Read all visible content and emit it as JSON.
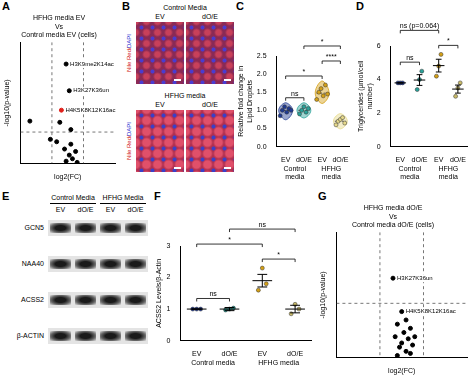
{
  "chart_data": [
    {
      "panel": "A",
      "type": "scatter",
      "title": [
        "HFHG media EV",
        "Vs",
        "Control media EV (cells)"
      ],
      "x_label": "log2(FC)",
      "y_label": "-log10(p-value)",
      "tick_labels": false,
      "grid": false,
      "xlim": [
        -1.5,
        1.5
      ],
      "ylim": [
        0,
        5
      ],
      "thresholds": {
        "x": [
          -0.5,
          0.5
        ],
        "y": 1.3
      },
      "x": [
        -0.05,
        0.05,
        -0.2,
        -1.2,
        -0.25,
        -0.55,
        -0.35,
        0.1,
        -0.1,
        0.25,
        0.05,
        0.15,
        -0.05,
        0.3,
        0.1
      ],
      "values": [
        4.1,
        3.0,
        2.2,
        1.75,
        1.7,
        1.0,
        0.9,
        0.8,
        0.6,
        0.5,
        0.35,
        0.2,
        0.1,
        0.05,
        1.4
      ],
      "colors": [
        "#000000",
        "#000000",
        "#e0201b",
        "#000000",
        "#000000",
        "#000000",
        "#000000",
        "#000000",
        "#000000",
        "#000000",
        "#000000",
        "#000000",
        "#000000",
        "#000000",
        "#000000"
      ],
      "point_labels": [
        "H3K9me2K14ac",
        "H3K27K36un",
        "H4K5K8K12K16ac",
        null,
        null,
        null,
        null,
        null,
        null,
        null,
        null,
        null,
        null,
        null,
        null
      ]
    },
    {
      "panel": "C",
      "type": "violin",
      "y_label": "Relative fold change in Lipid Droplets",
      "grid": false,
      "categories": [
        "EV",
        "dO/E",
        "EV",
        "dO/E"
      ],
      "groups": [
        {
          "label": "Control media",
          "span": 2
        },
        {
          "label": "HFHG media",
          "span": 2
        }
      ],
      "colors": [
        "#1f3a93",
        "#2aa198",
        "#d4a017",
        "#e6d98a"
      ],
      "points": [
        [
          0.85,
          1.0,
          1.1,
          0.95,
          1.05,
          1.0
        ],
        [
          0.9,
          1.0,
          1.1,
          0.95,
          1.05
        ],
        [
          1.3,
          1.5,
          1.6,
          1.4,
          1.7,
          1.45
        ],
        [
          0.6,
          0.7,
          0.75,
          0.8,
          0.65
        ]
      ],
      "ylim": [
        0,
        2.5
      ],
      "yticks": [
        {
          "value": 0,
          "label": "0.0"
        },
        {
          "value": 0.5,
          "label": "0.5"
        },
        {
          "value": 1,
          "label": "1.0"
        },
        {
          "value": 1.5,
          "label": "1.5"
        },
        {
          "value": 2,
          "label": "2.0"
        },
        {
          "value": 2.5,
          "label": "2.5"
        }
      ],
      "significance": [
        {
          "from": 0,
          "to": 1,
          "label": "ns"
        },
        {
          "from": 0,
          "to": 2,
          "label": "*"
        },
        {
          "from": 2,
          "to": 3,
          "label": "****"
        },
        {
          "from": 1,
          "to": 3,
          "label": "*"
        }
      ]
    },
    {
      "panel": "D",
      "type": "dot",
      "y_label": "Triglycerides (µmol/cell number)",
      "grid": false,
      "categories": [
        "EV",
        "dO/E",
        "EV",
        "dO/E"
      ],
      "groups": [
        {
          "label": "Control media",
          "span": 2
        },
        {
          "label": "HFHG media",
          "span": 2
        }
      ],
      "colors": [
        "#1f3a93",
        "#2aa198",
        "#d4a017",
        "#c9bb6a"
      ],
      "values": [
        3.8,
        3.97,
        4.83,
        3.43
      ],
      "errors": [
        0,
        0.32,
        0.38,
        0.24
      ],
      "points": [
        [
          3.8,
          3.8,
          3.8
        ],
        [
          3.4,
          4.0,
          4.5
        ],
        [
          4.2,
          4.8,
          5.5
        ],
        [
          3.0,
          3.5,
          3.8
        ]
      ],
      "ylim": [
        0,
        6
      ],
      "yticks": [
        0,
        2,
        4,
        6
      ],
      "significance": [
        {
          "from": 0,
          "to": 1,
          "label": "ns"
        },
        {
          "from": 2,
          "to": 3,
          "label": "*"
        },
        {
          "from": 0,
          "to": 2,
          "label": "ns (p=0.064)"
        }
      ]
    },
    {
      "panel": "F",
      "type": "dot",
      "y_label": "ACSS2 Levels/β-Actin",
      "grid": false,
      "categories": [
        "EV",
        "dO/E",
        "EV",
        "dO/E"
      ],
      "groups": [
        {
          "label": "Control media",
          "span": 2
        },
        {
          "label": "HFHG media",
          "span": 2
        }
      ],
      "colors": [
        "#1f3a93",
        "#2aa198",
        "#d4a017",
        "#c9bb6a"
      ],
      "values": [
        1.0,
        1.0,
        1.9,
        1.0
      ],
      "errors": [
        0,
        0.05,
        0.2,
        0.12
      ],
      "points": [
        [
          1.0,
          1.0,
          1.0
        ],
        [
          0.97,
          1.0,
          1.03
        ],
        [
          1.6,
          2.3,
          1.8
        ],
        [
          0.85,
          1.15,
          1.0
        ]
      ],
      "ylim": [
        0,
        3
      ],
      "yticks": [
        0,
        1,
        2,
        3
      ],
      "significance": [
        {
          "from": 0,
          "to": 1,
          "label": "ns"
        },
        {
          "from": 2,
          "to": 3,
          "label": "*"
        },
        {
          "from": 0,
          "to": 2,
          "label": "*"
        },
        {
          "from": 1,
          "to": 3,
          "label": "ns"
        }
      ]
    },
    {
      "panel": "G",
      "type": "scatter",
      "title": [
        "HFHG media dO/E",
        "Vs",
        "Control media dO/E (cells)"
      ],
      "x_label": "log2(FC)",
      "y_label": "-log10(p-value)",
      "tick_labels": false,
      "grid": false,
      "xlim": [
        -1.5,
        1.5
      ],
      "ylim": [
        0,
        3
      ],
      "thresholds": {
        "x": [
          -0.5,
          0.5
        ],
        "y": 1.3
      },
      "x": [
        -0.2,
        0.0,
        0.1,
        -0.1,
        0.2,
        0.05,
        -0.15,
        0.15,
        0,
        0.25,
        -0.05,
        0.1,
        0.2,
        -0.1,
        0.3
      ],
      "values": [
        1.9,
        1.1,
        0.9,
        0.8,
        0.7,
        0.6,
        0.5,
        0.45,
        0.35,
        0.3,
        0.25,
        0.15,
        0.1,
        0.05,
        0.5
      ],
      "colors": [
        "#000000",
        "#000000",
        "#000000",
        "#000000",
        "#000000",
        "#000000",
        "#000000",
        "#000000",
        "#000000",
        "#000000",
        "#000000",
        "#000000",
        "#000000",
        "#000000",
        "#000000"
      ],
      "point_labels": [
        "H3K27K36un",
        "H4K5K8K12K16ac",
        null,
        null,
        null,
        null,
        null,
        null,
        null,
        null,
        null,
        null,
        null,
        null,
        null
      ]
    }
  ],
  "images": [
    {
      "panel": "B",
      "type": "micrograph",
      "stain_label": "Nile Red/ DAPI",
      "groups": [
        {
          "label": "Control Media",
          "columns": [
            "EV",
            "dO/E"
          ]
        },
        {
          "label": "HFHG media",
          "columns": [
            "EV",
            "dO/E"
          ]
        }
      ]
    },
    {
      "panel": "E",
      "type": "western_blot",
      "groups": [
        {
          "label": "Control Media",
          "columns": [
            "EV",
            "dO/E"
          ]
        },
        {
          "label": "HFHG Media",
          "columns": [
            "EV",
            "dO/E"
          ]
        }
      ],
      "rows": [
        "GCN5",
        "NAA40",
        "ACSS2",
        "β-ACTIN"
      ]
    }
  ]
}
